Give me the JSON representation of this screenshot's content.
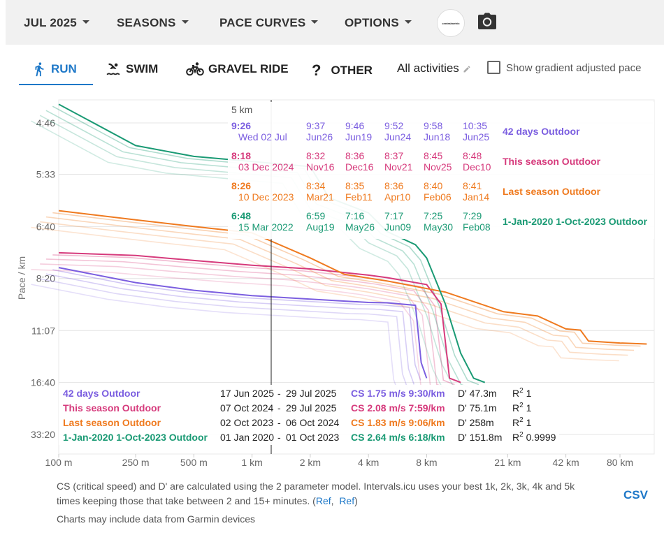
{
  "topbar": {
    "month": "JUL 2025",
    "seasons": "SEASONS",
    "pace_curves": "PACE CURVES",
    "options": "OPTIONS",
    "logo_text": "centralmetrix"
  },
  "tabs": [
    {
      "label": "RUN",
      "icon": "running-icon",
      "active": true
    },
    {
      "label": "SWIM",
      "icon": "swimming-icon",
      "active": false
    },
    {
      "label": "GRAVEL RIDE",
      "icon": "bicycle-icon",
      "active": false
    },
    {
      "label": "OTHER",
      "icon": "question-icon",
      "active": false
    }
  ],
  "filter": {
    "all_activities": "All activities",
    "gradient_label": "Show gradient adjusted pace",
    "gradient_checked": false
  },
  "colors": {
    "days42": "#7b5ee0",
    "season": "#d63a7c",
    "last_season": "#ef7a1f",
    "historic": "#1a9a74",
    "accent": "#1e78c8"
  },
  "chart_data": {
    "type": "line",
    "ylabel": "Pace / km",
    "x_scale": "log",
    "x_ticks": [
      "100 m",
      "250 m",
      "500 m",
      "1 km",
      "2 km",
      "4 km",
      "8 km",
      "21 km",
      "42 km",
      "80 km"
    ],
    "x_tick_km": [
      0.1,
      0.25,
      0.5,
      1,
      2,
      4,
      8,
      21,
      42,
      80
    ],
    "y_ticks": [
      "4:46",
      "5:33",
      "6:40",
      "8:20",
      "11:07",
      "16:40",
      "33:20"
    ],
    "y_scale": "reciprocal speed (speed axis)",
    "cursor_distance": "5 km",
    "series": [
      {
        "name": "42 days Outdoor",
        "color": "#7b5ee0",
        "points": [
          [
            "100 m",
            "7:55"
          ],
          [
            "250 m",
            "8:30"
          ],
          [
            "500 m",
            "8:50"
          ],
          [
            "1 km",
            "9:05"
          ],
          [
            "2 km",
            "9:15"
          ],
          [
            "4 km",
            "9:25"
          ],
          [
            "5 km",
            "9:26"
          ],
          [
            "7 km",
            "9:34"
          ],
          [
            "7.5 km",
            "14:00"
          ],
          [
            "8 km",
            "16:00"
          ]
        ]
      },
      {
        "name": "This season Outdoor",
        "color": "#d63a7c",
        "points": [
          [
            "100 m",
            "7:25"
          ],
          [
            "250 m",
            "7:30"
          ],
          [
            "500 m",
            "7:40"
          ],
          [
            "1 km",
            "7:50"
          ],
          [
            "2 km",
            "7:58"
          ],
          [
            "4 km",
            "8:12"
          ],
          [
            "5 km",
            "8:18"
          ],
          [
            "8 km",
            "8:35"
          ],
          [
            "9.5 km",
            "9:30"
          ],
          [
            "10.5 km",
            "16:00"
          ],
          [
            "12 km",
            "16:40"
          ]
        ]
      },
      {
        "name": "Last season Outdoor",
        "color": "#ef7a1f",
        "points": [
          [
            "100 m",
            "6:17"
          ],
          [
            "250 m",
            "6:30"
          ],
          [
            "500 m",
            "6:40"
          ],
          [
            "1 km",
            "6:50"
          ],
          [
            "2 km",
            "7:35"
          ],
          [
            "3 km",
            "8:10"
          ],
          [
            "5 km",
            "8:26"
          ],
          [
            "10 km",
            "8:55"
          ],
          [
            "20 km",
            "9:55"
          ],
          [
            "30 km",
            "10:10"
          ],
          [
            "42 km",
            "11:00"
          ],
          [
            "50 km",
            "11:05"
          ],
          [
            "55 km",
            "11:55"
          ],
          [
            "80 km",
            "12:05"
          ],
          [
            "110 km",
            "12:10"
          ]
        ]
      },
      {
        "name": "1-Jan-2020 1-Oct-2023 Outdoor",
        "color": "#1a9a74",
        "points": [
          [
            "100 m",
            "4:32"
          ],
          [
            "250 m",
            "5:05"
          ],
          [
            "500 m",
            "5:15"
          ],
          [
            "1 km",
            "5:20"
          ],
          [
            "2 km",
            "5:25"
          ],
          [
            "2.5 km",
            "6:00"
          ],
          [
            "4 km",
            "6:20"
          ],
          [
            "5 km",
            "6:48"
          ],
          [
            "7 km",
            "7:10"
          ],
          [
            "8 km",
            "7:35"
          ],
          [
            "10 km",
            "9:30"
          ],
          [
            "12 km",
            "13:00"
          ],
          [
            "14 km",
            "16:00"
          ],
          [
            "16 km",
            "16:40"
          ]
        ]
      }
    ],
    "tooltip": {
      "distance": "5 km",
      "rows": [
        {
          "best": "9:26",
          "best_date": "Wed 02 Jul",
          "others": [
            [
              "9:37",
              "Jun26"
            ],
            [
              "9:46",
              "Jun19"
            ],
            [
              "9:52",
              "Jun24"
            ],
            [
              "9:58",
              "Jun18"
            ],
            [
              "10:35",
              "Jun25"
            ]
          ],
          "label": "42 days Outdoor"
        },
        {
          "best": "8:18",
          "best_date": "03 Dec 2024",
          "others": [
            [
              "8:32",
              "Nov16"
            ],
            [
              "8:36",
              "Dec16"
            ],
            [
              "8:37",
              "Nov21"
            ],
            [
              "8:45",
              "Nov25"
            ],
            [
              "8:48",
              "Dec10"
            ]
          ],
          "label": "This season Outdoor"
        },
        {
          "best": "8:26",
          "best_date": "10 Dec 2023",
          "others": [
            [
              "8:34",
              "Mar21"
            ],
            [
              "8:35",
              "Feb11"
            ],
            [
              "8:36",
              "Apr10"
            ],
            [
              "8:40",
              "Feb06"
            ],
            [
              "8:41",
              "Jan14"
            ]
          ],
          "label": "Last season Outdoor"
        },
        {
          "best": "6:48",
          "best_date": "15 Mar 2022",
          "others": [
            [
              "6:59",
              "Aug19"
            ],
            [
              "7:16",
              "May26"
            ],
            [
              "7:17",
              "Jun09"
            ],
            [
              "7:25",
              "May30"
            ],
            [
              "7:29",
              "Feb08"
            ]
          ],
          "label": "1-Jan-2020 1-Oct-2023 Outdoor"
        }
      ]
    },
    "legend": {
      "placement": "bottom",
      "rows": [
        {
          "name": "42 days Outdoor",
          "from": "17 Jun 2025",
          "to": "29 Jul 2025",
          "cs": "CS 1.75 m/s 9:30/km",
          "dprime": "D' 47.3m",
          "r2": "1"
        },
        {
          "name": "This season Outdoor",
          "from": "07 Oct 2024",
          "to": "29 Jul 2025",
          "cs": "CS 2.08 m/s 7:59/km",
          "dprime": "D' 75.1m",
          "r2": "1"
        },
        {
          "name": "Last season Outdoor",
          "from": "02 Oct 2023",
          "to": "06 Oct 2024",
          "cs": "CS 1.83 m/s 9:06/km",
          "dprime": "D' 258m",
          "r2": "1"
        },
        {
          "name": "1-Jan-2020 1-Oct-2023 Outdoor",
          "from": "01 Jan 2020",
          "to": "01 Oct 2023",
          "cs": "CS 2.64 m/s 6:18/km",
          "dprime": "D' 151.8m",
          "r2": "0.9999"
        }
      ]
    }
  },
  "footer": {
    "line1": "CS (critical speed) and D' are calculated using the 2 parameter model. Intervals.icu uses your best 1k, 2k, 3k, 4k and 5k",
    "line2": "times keeping those that take between 2 and 15+ minutes. (",
    "ref1": "Ref",
    "ref2": "Ref",
    "line2_end": ")",
    "line3": "Charts may include data from Garmin devices",
    "csv": "CSV"
  }
}
